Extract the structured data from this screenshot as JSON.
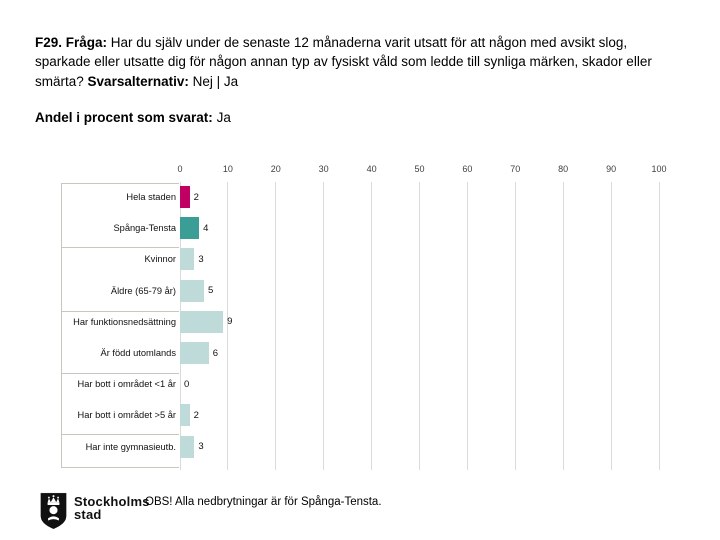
{
  "title": {
    "q_label": "F29. Fråga:",
    "q_text": "Har du själv under de senaste 12 månaderna varit utsatt för att någon med avsikt slog, sparkade eller utsatte dig för någon annan typ av fysiskt våld som ledde till synliga märken, skador eller smärta?",
    "alt_label": "Svarsalternativ:",
    "alt_text": "Nej | Ja"
  },
  "subtitle": {
    "label": "Andel i procent som svarat:",
    "value": "Ja"
  },
  "chart_data": {
    "type": "bar",
    "orientation": "horizontal",
    "title": "Andel i procent som svarat: Ja",
    "categories": [
      "Hela staden",
      "Spånga-Tensta",
      "Kvinnor",
      "Äldre (65-79 år)",
      "Har funktionsnedsättning",
      "Är född utomlands",
      "Har bott i området <1 år",
      "Har bott i området >5 år",
      "Har inte gymnasieutb."
    ],
    "values": [
      2,
      4,
      3,
      5,
      9,
      6,
      0,
      2,
      3
    ],
    "bar_colors": [
      "#C00063",
      "#3B9E96",
      "#BFDBD9",
      "#BFDBD9",
      "#BFDBD9",
      "#BFDBD9",
      "#BFDBD9",
      "#BFDBD9",
      "#BFDBD9"
    ],
    "xlim": [
      0,
      100
    ],
    "xticks": [
      0,
      10,
      20,
      30,
      40,
      50,
      60,
      70,
      80,
      90,
      100
    ],
    "xlabel": "",
    "ylabel": "",
    "grid": true,
    "gridline_color": "#DADADA",
    "value_labels": true,
    "legend": "none"
  },
  "footer": {
    "note": "OBS! Alla nedbrytningar är för Spånga-Tensta.",
    "logo": {
      "icon": "stockholms-stad-shield-icon",
      "line1": "Stockholms",
      "line2": "stad"
    }
  },
  "colors": {
    "accent_magenta": "#C00063",
    "accent_teal": "#3B9E96",
    "bar_light": "#BFDBD9",
    "gridline": "#DADADA",
    "card_border": "#CBC6BD",
    "text": "#000000"
  }
}
